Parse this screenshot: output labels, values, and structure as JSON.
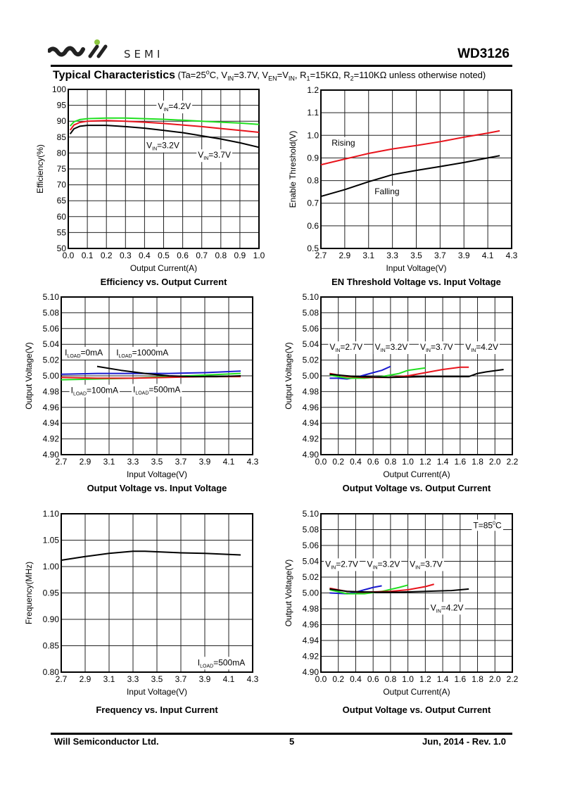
{
  "header": {
    "logo_text": "SEMI",
    "part_number": "WD3126",
    "section_title": "Typical Characteristics",
    "conditions": [
      {
        "t": " (Ta=25"
      },
      {
        "t": "o",
        "sup": true
      },
      {
        "t": "C, V"
      },
      {
        "t": "IN",
        "sub": true
      },
      {
        "t": "=3.7V, V"
      },
      {
        "t": "EN",
        "sub": true
      },
      {
        "t": "=V"
      },
      {
        "t": "IN",
        "sub": true
      },
      {
        "t": ", R"
      },
      {
        "t": "1",
        "sub": true
      },
      {
        "t": "=15KΩ, R"
      },
      {
        "t": "2",
        "sub": true
      },
      {
        "t": "=110KΩ unless otherwise noted)"
      }
    ]
  },
  "footer": {
    "company": "Will Semiconductor Ltd.",
    "page": "5",
    "date_rev": "Jun, 2014 - Rev. 1.0"
  },
  "colors": {
    "black": "#000000",
    "red": "#e8141c",
    "green": "#22e022",
    "blue": "#1a1ad0",
    "logo_dot": "#8cc63f",
    "grid": "#000000"
  },
  "chart_data": [
    {
      "id": "efficiency",
      "type": "line",
      "title": "Efficiency vs. Output Current",
      "xlabel": "Output Current(A)",
      "ylabel": "Efficiency(%)",
      "xlim": [
        0.0,
        1.0
      ],
      "ylim": [
        50,
        100
      ],
      "xticks": [
        "0.0",
        "0.1",
        "0.2",
        "0.3",
        "0.4",
        "0.5",
        "0.6",
        "0.7",
        "0.8",
        "0.9",
        "1.0"
      ],
      "yticks": [
        "50",
        "55",
        "60",
        "65",
        "70",
        "75",
        "80",
        "85",
        "90",
        "95",
        "100"
      ],
      "grid": true,
      "series": [
        {
          "name": "VIN=4.2V",
          "color": "green",
          "x": [
            0.01,
            0.03,
            0.06,
            0.1,
            0.2,
            0.3,
            0.4,
            0.5,
            0.6,
            0.7,
            0.8,
            0.9,
            1.0
          ],
          "y": [
            88.5,
            89.8,
            90.5,
            90.8,
            91.0,
            91.0,
            90.8,
            90.6,
            90.3,
            90.0,
            89.7,
            89.4,
            89.0
          ]
        },
        {
          "name": "VIN=3.7V",
          "color": "red",
          "x": [
            0.01,
            0.03,
            0.06,
            0.1,
            0.2,
            0.3,
            0.4,
            0.5,
            0.6,
            0.7,
            0.8,
            0.9,
            1.0
          ],
          "y": [
            87.2,
            88.8,
            89.6,
            90.0,
            90.2,
            90.0,
            89.7,
            89.3,
            88.8,
            88.3,
            87.7,
            87.1,
            86.5
          ]
        },
        {
          "name": "VIN=3.2V",
          "color": "black",
          "x": [
            0.01,
            0.03,
            0.06,
            0.1,
            0.2,
            0.3,
            0.4,
            0.5,
            0.6,
            0.7,
            0.8,
            0.9,
            1.0
          ],
          "y": [
            86.0,
            87.6,
            88.4,
            88.7,
            88.7,
            88.3,
            87.8,
            87.1,
            86.4,
            85.4,
            84.4,
            83.2,
            81.8
          ]
        }
      ],
      "annotations": [
        {
          "text": "V",
          "sub": "IN",
          "rest": "=4.2V",
          "x": 0.47,
          "y": 93.8
        },
        {
          "text": "V",
          "sub": "IN",
          "rest": "=3.2V",
          "x": 0.41,
          "y": 81.5
        },
        {
          "text": "V",
          "sub": "IN",
          "rest": "=3.7V",
          "x": 0.68,
          "y": 78.5
        }
      ]
    },
    {
      "id": "en-threshold",
      "type": "line",
      "title": "EN Threshold Voltage vs. Input Voltage",
      "xlabel": "Input Voltage(V)",
      "ylabel": "Enable Threshold(V)",
      "xlim": [
        2.7,
        4.3
      ],
      "ylim": [
        0.5,
        1.2
      ],
      "xticks": [
        "2.7",
        "2.9",
        "3.1",
        "3.3",
        "3.5",
        "3.7",
        "3.9",
        "4.1",
        "4.3"
      ],
      "yticks": [
        "0.5",
        "0.6",
        "0.7",
        "0.8",
        "0.9",
        "1.0",
        "1.1",
        "1.2"
      ],
      "grid": true,
      "series": [
        {
          "name": "Rising",
          "color": "red",
          "x": [
            2.7,
            2.9,
            3.1,
            3.3,
            3.5,
            3.7,
            3.9,
            4.1,
            4.2
          ],
          "y": [
            0.87,
            0.895,
            0.92,
            0.94,
            0.955,
            0.972,
            0.992,
            1.01,
            1.02
          ]
        },
        {
          "name": "Falling",
          "color": "black",
          "x": [
            2.7,
            2.9,
            3.1,
            3.3,
            3.5,
            3.7,
            3.9,
            4.1,
            4.2
          ],
          "y": [
            0.73,
            0.76,
            0.795,
            0.826,
            0.845,
            0.862,
            0.88,
            0.9,
            0.91
          ]
        }
      ],
      "annotations": [
        {
          "text": "Rising",
          "x": 2.79,
          "y": 0.955
        },
        {
          "text": "Falling",
          "x": 3.15,
          "y": 0.74
        }
      ]
    },
    {
      "id": "vout-vs-vin",
      "type": "line",
      "title": "Output Voltage vs. Input Voltage",
      "xlabel": "Input Voltage(V)",
      "ylabel": "Output Voltage(V)",
      "xlim": [
        2.7,
        4.3
      ],
      "ylim": [
        4.9,
        5.1
      ],
      "xticks": [
        "2.7",
        "2.9",
        "3.1",
        "3.3",
        "3.5",
        "3.7",
        "3.9",
        "4.1",
        "4.3"
      ],
      "yticks": [
        "4.90",
        "4.92",
        "4.94",
        "4.96",
        "4.98",
        "5.00",
        "5.02",
        "5.04",
        "5.06",
        "5.08",
        "5.10"
      ],
      "grid": true,
      "series": [
        {
          "name": "ILOAD=0mA",
          "color": "blue",
          "x": [
            2.7,
            3.0,
            3.3,
            3.6,
            3.9,
            4.2
          ],
          "y": [
            5.002,
            5.003,
            5.003,
            5.003,
            5.004,
            5.006
          ]
        },
        {
          "name": "ILOAD=100mA",
          "color": "green",
          "x": [
            2.7,
            3.0,
            3.3,
            3.6,
            3.9,
            4.2
          ],
          "y": [
            4.995,
            4.996,
            4.997,
            4.999,
            5.001,
            5.003
          ]
        },
        {
          "name": "ILOAD=500mA",
          "color": "red",
          "x": [
            2.7,
            3.0,
            3.3,
            3.6,
            3.9,
            4.2
          ],
          "y": [
            4.998,
            4.997,
            4.997,
            4.998,
            4.999,
            4.999
          ]
        },
        {
          "name": "ILOAD=1000mA",
          "color": "black",
          "x": [
            3.0,
            3.2,
            3.4,
            3.6,
            3.8,
            4.0,
            4.2
          ],
          "y": [
            5.012,
            5.007,
            5.003,
            5.0,
            4.999,
            4.999,
            5.0
          ]
        }
      ],
      "annotations": [
        {
          "text": "I",
          "sub": "LOAD",
          "rest": "=0mA",
          "x": 2.73,
          "y": 5.026
        },
        {
          "text": "I",
          "sub": "LOAD",
          "rest": "=1000mA",
          "x": 3.16,
          "y": 5.026
        },
        {
          "text": "I",
          "sub": "LOAD",
          "rest": "=100mA",
          "x": 2.78,
          "y": 4.978
        },
        {
          "text": "I",
          "sub": "LOAD",
          "rest": "=500mA",
          "x": 3.3,
          "y": 4.979
        }
      ]
    },
    {
      "id": "vout-vs-iout",
      "type": "line",
      "title": "Output Voltage vs. Output Current",
      "xlabel": "Output Current(A)",
      "ylabel": "Output Voltage(V)",
      "xlim": [
        0.0,
        2.2
      ],
      "ylim": [
        4.9,
        5.1
      ],
      "xticks": [
        "0.0",
        "0.2",
        "0.4",
        "0.6",
        "0.8",
        "1.0",
        "1.2",
        "1.4",
        "1.6",
        "1.8",
        "2.0",
        "2.2"
      ],
      "yticks": [
        "4.90",
        "4.92",
        "4.94",
        "4.96",
        "4.98",
        "5.00",
        "5.02",
        "5.04",
        "5.06",
        "5.08",
        "5.10"
      ],
      "grid": true,
      "series": [
        {
          "name": "VIN=2.7V",
          "color": "blue",
          "x": [
            0.1,
            0.2,
            0.3,
            0.4,
            0.5,
            0.6,
            0.7,
            0.8
          ],
          "y": [
            4.997,
            4.997,
            4.996,
            4.998,
            5.001,
            5.004,
            5.007,
            5.012
          ]
        },
        {
          "name": "VIN=3.2V",
          "color": "green",
          "x": [
            0.1,
            0.3,
            0.5,
            0.7,
            0.9,
            1.0,
            1.2
          ],
          "y": [
            5.001,
            4.997,
            4.997,
            4.999,
            5.003,
            5.007,
            5.01
          ]
        },
        {
          "name": "VIN=3.7V",
          "color": "red",
          "x": [
            0.1,
            0.3,
            0.5,
            0.8,
            1.0,
            1.2,
            1.4,
            1.6,
            1.7
          ],
          "y": [
            5.003,
            4.999,
            4.998,
            4.998,
            5.0,
            5.004,
            5.008,
            5.011,
            5.011
          ]
        },
        {
          "name": "VIN=4.2V",
          "color": "black",
          "x": [
            0.1,
            0.4,
            0.8,
            1.2,
            1.5,
            1.7,
            1.8,
            1.9,
            2.1
          ],
          "y": [
            5.002,
            4.999,
            4.998,
            4.999,
            4.999,
            4.999,
            5.003,
            5.005,
            5.008
          ]
        }
      ],
      "annotations": [
        {
          "text": "V",
          "sub": "IN",
          "rest": "=2.7V",
          "x": 0.1,
          "y": 5.033
        },
        {
          "text": "V",
          "sub": "IN",
          "rest": "=3.2V",
          "x": 0.62,
          "y": 5.033
        },
        {
          "text": "V",
          "sub": "IN",
          "rest": "=3.7V",
          "x": 1.14,
          "y": 5.033
        },
        {
          "text": "V",
          "sub": "IN",
          "rest": "=4.2V",
          "x": 1.66,
          "y": 5.033
        }
      ]
    },
    {
      "id": "frequency",
      "type": "line",
      "title": "Frequency vs. Input Current",
      "xlabel": "Input Voltage(V)",
      "ylabel": "Frequency(MHz)",
      "xlim": [
        2.7,
        4.3
      ],
      "ylim": [
        0.8,
        1.1
      ],
      "xticks": [
        "2.7",
        "2.9",
        "3.1",
        "3.3",
        "3.5",
        "3.7",
        "3.9",
        "4.1",
        "4.3"
      ],
      "yticks": [
        "0.80",
        "0.85",
        "0.90",
        "0.95",
        "1.00",
        "1.05",
        "1.10"
      ],
      "grid": true,
      "series": [
        {
          "name": "ILOAD=500mA",
          "color": "black",
          "x": [
            2.7,
            2.9,
            3.1,
            3.3,
            3.4,
            3.5,
            3.7,
            3.9,
            4.1,
            4.2
          ],
          "y": [
            1.012,
            1.019,
            1.025,
            1.029,
            1.029,
            1.028,
            1.026,
            1.025,
            1.023,
            1.022
          ]
        }
      ],
      "annotations": [
        {
          "text": "I",
          "sub": "LOAD",
          "rest": "=500mA",
          "x": 3.84,
          "y": 0.813
        }
      ]
    },
    {
      "id": "vout-vs-iout-85c",
      "type": "line",
      "title": "Output Voltage vs. Output Current",
      "xlabel": "Output Current(A)",
      "ylabel": "Output Voltage(V)",
      "xlim": [
        0.0,
        2.2
      ],
      "ylim": [
        4.9,
        5.1
      ],
      "xticks": [
        "0.0",
        "0.2",
        "0.4",
        "0.6",
        "0.8",
        "1.0",
        "1.2",
        "1.4",
        "1.6",
        "1.8",
        "2.0",
        "2.2"
      ],
      "yticks": [
        "4.90",
        "4.92",
        "4.94",
        "4.96",
        "4.98",
        "5.00",
        "5.02",
        "5.04",
        "5.06",
        "5.08",
        "5.10"
      ],
      "grid": true,
      "series": [
        {
          "name": "VIN=2.7V",
          "color": "blue",
          "x": [
            0.1,
            0.3,
            0.4,
            0.5,
            0.6,
            0.7
          ],
          "y": [
            5.0,
            4.999,
            5.001,
            5.004,
            5.007,
            5.009
          ]
        },
        {
          "name": "VIN=3.2V",
          "color": "green",
          "x": [
            0.1,
            0.3,
            0.5,
            0.7,
            0.9,
            1.0
          ],
          "y": [
            5.004,
            4.999,
            4.999,
            5.002,
            5.007,
            5.01
          ]
        },
        {
          "name": "VIN=3.7V",
          "color": "red",
          "x": [
            0.1,
            0.3,
            0.5,
            0.8,
            1.0,
            1.2,
            1.3
          ],
          "y": [
            5.006,
            5.002,
            5.001,
            5.002,
            5.004,
            5.008,
            5.011
          ]
        },
        {
          "name": "VIN=4.2V",
          "color": "black",
          "x": [
            0.1,
            0.3,
            0.6,
            0.9,
            1.2,
            1.5,
            1.7
          ],
          "y": [
            5.005,
            5.002,
            5.001,
            5.001,
            5.002,
            5.003,
            5.005
          ]
        }
      ],
      "annotations": [
        {
          "text": "T=85",
          "sup": "0",
          "rest": "C",
          "x": 1.75,
          "y": 5.082
        },
        {
          "text": "V",
          "sub": "IN",
          "rest": "=2.7V",
          "x": 0.05,
          "y": 5.033
        },
        {
          "text": "V",
          "sub": "IN",
          "rest": "=3.2V",
          "x": 0.53,
          "y": 5.033
        },
        {
          "text": "V",
          "sub": "IN",
          "rest": "=3.7V",
          "x": 1.02,
          "y": 5.033
        },
        {
          "text": "V",
          "sub": "IN",
          "rest": "=4.2V",
          "x": 1.26,
          "y": 4.978
        }
      ]
    }
  ]
}
